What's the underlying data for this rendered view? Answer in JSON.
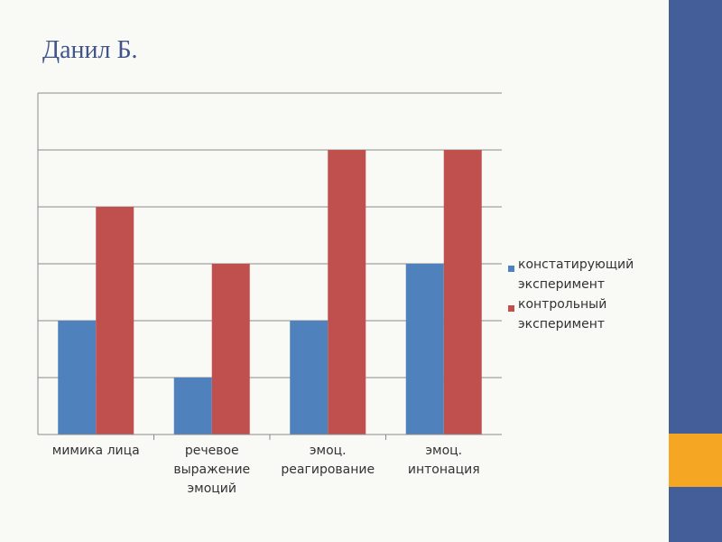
{
  "slide": {
    "title": "Данил Б.",
    "colors": {
      "sidebar": "#445e9a",
      "accent": "#f5a623",
      "background": "#f9f9f6"
    }
  },
  "chart_data": {
    "type": "bar",
    "categories": [
      [
        "мимика лица"
      ],
      [
        "речевое",
        "выражение",
        "эмоций"
      ],
      [
        "эмоц.",
        "реагирование"
      ],
      [
        "эмоц.",
        "интонация"
      ]
    ],
    "series": [
      {
        "name": "констатирующий эксперимент",
        "color": "#4f81bd",
        "values": [
          2,
          1,
          2,
          3
        ]
      },
      {
        "name": "контрольный эксперимент",
        "color": "#c0504d",
        "values": [
          4,
          3,
          5,
          5
        ]
      }
    ],
    "ylim": [
      0,
      6
    ],
    "yticks": [
      0,
      1,
      2,
      3,
      4,
      5,
      6
    ],
    "grid": true,
    "legend_position": "right"
  }
}
